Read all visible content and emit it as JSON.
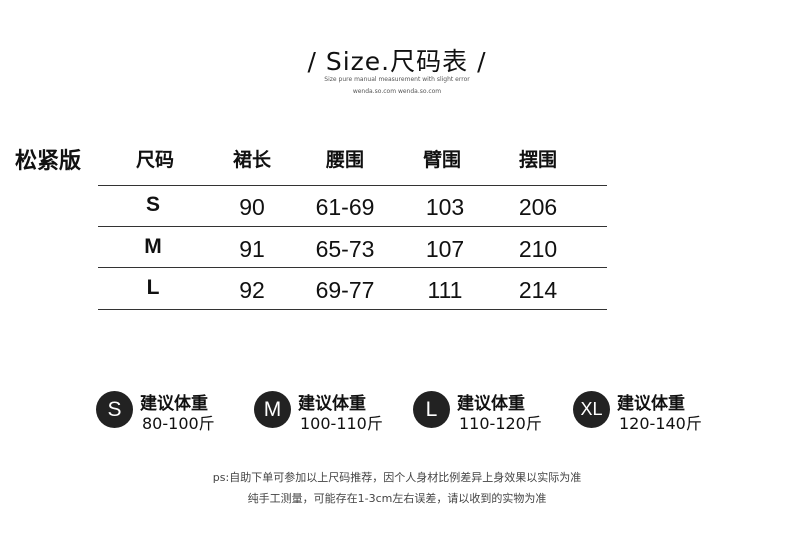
{
  "header": {
    "title": "/ Size.尺码表 /",
    "subtitle": "Size pure manual measurement with slight error",
    "site": "wenda.so.com wenda.so.com"
  },
  "table": {
    "label": "松紧版",
    "columns": [
      "尺码",
      "裙长",
      "腰围",
      "臂围",
      "摆围"
    ],
    "rows": [
      [
        "S",
        "90",
        "61-69",
        "103",
        "206"
      ],
      [
        "M",
        "91",
        "65-73",
        "107",
        "210"
      ],
      [
        "L",
        "92",
        "69-77",
        "111",
        "214"
      ]
    ]
  },
  "recommendations": [
    {
      "size": "S",
      "label": "建议体重",
      "range": "80-100斤"
    },
    {
      "size": "M",
      "label": "建议体重",
      "range": "100-110斤"
    },
    {
      "size": "L",
      "label": "建议体重",
      "range": "110-120斤"
    },
    {
      "size": "XL",
      "label": "建议体重",
      "range": "120-140斤"
    }
  ],
  "notes": [
    "ps:自助下单可参加以上尺码推荐，因个人身材比例差异上身效果以实际为准",
    "纯手工测量，可能存在1-3cm左右误差，请以收到的实物为准"
  ]
}
